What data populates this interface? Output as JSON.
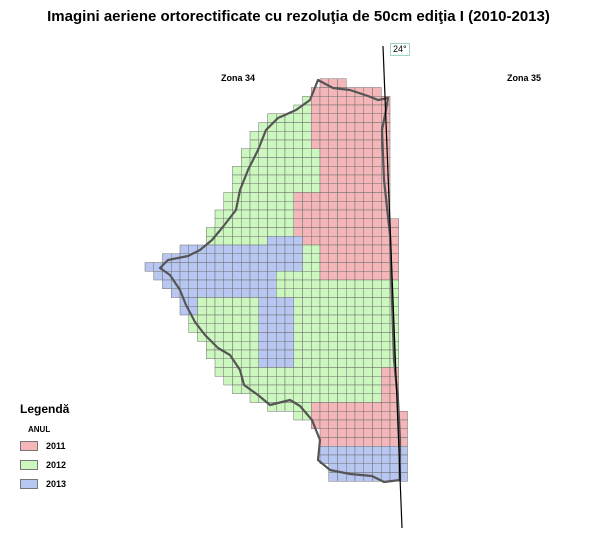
{
  "title": "Imagini aeriene ortorectificate cu rezoluţia de 50cm ediţia I (2010-2013)",
  "zones": {
    "left": "Zona 34",
    "right": "Zona 35"
  },
  "meridian_label": "24°",
  "legend": {
    "title": "Legendă",
    "subtitle": "ANUL",
    "items": [
      {
        "label": "2011",
        "color": "#f4b6b8"
      },
      {
        "label": "2012",
        "color": "#ccf7bf"
      },
      {
        "label": "2013",
        "color": "#b7c7f2"
      }
    ]
  },
  "colors": {
    "grid_line": "#6f6f6f",
    "boundary": "#555555",
    "meridian": "#000000"
  }
}
